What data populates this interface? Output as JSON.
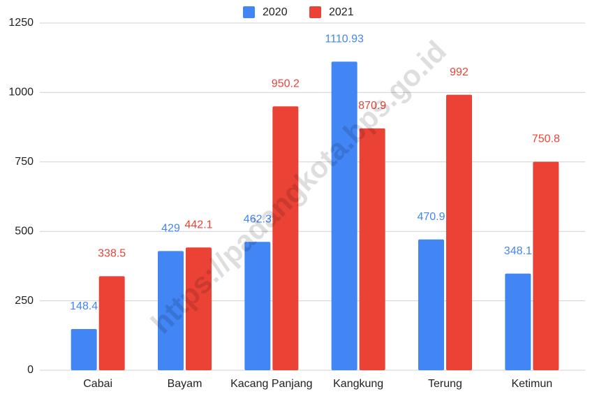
{
  "chart_data": {
    "type": "bar",
    "categories": [
      "Cabai",
      "Bayam",
      "Kacang Panjang",
      "Kangkung",
      "Terung",
      "Ketimun"
    ],
    "series": [
      {
        "name": "2020",
        "color": "#4285f4",
        "values": [
          148.4,
          429,
          462.3,
          1110.93,
          470.9,
          348.1
        ]
      },
      {
        "name": "2021",
        "color": "#ea4335",
        "values": [
          338.5,
          442.1,
          950.2,
          870.9,
          992,
          750.8
        ]
      }
    ],
    "ylim": [
      0,
      1250
    ],
    "yticks": [
      0,
      250,
      500,
      750,
      1000,
      1250
    ],
    "grid": true,
    "legend": "top",
    "watermark": "https://padangkota.bps.go.id"
  }
}
